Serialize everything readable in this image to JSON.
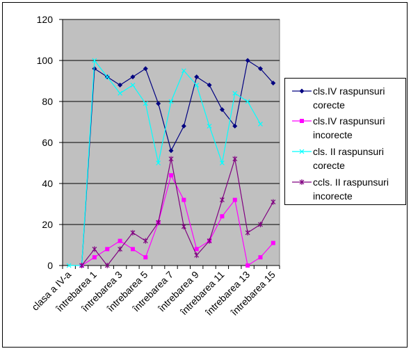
{
  "chart_data": {
    "type": "line",
    "categories": [
      "clasa a IV-a",
      "",
      "întrebarea 1",
      "",
      "întrebarea 3",
      "",
      "întrebarea 5",
      "",
      "întrebarea 7",
      "",
      "întrebarea 9",
      "",
      "întrebarea 11",
      "",
      "întrebarea 13",
      "",
      "întrebarea 15"
    ],
    "x_tick_labels": [
      "clasa a IV-a",
      "întrebarea 1",
      "întrebarea 3",
      "întrebarea 5",
      "întrebarea 7",
      "întrebarea 9",
      "întrebarea 11",
      "întrebarea 13",
      "întrebarea 15"
    ],
    "y_ticks": [
      "0",
      "20",
      "40",
      "60",
      "80",
      "100",
      "120"
    ],
    "ylim": [
      0,
      120
    ],
    "grid": "horizontal",
    "legend_position": "right",
    "background": "#c0c0c0",
    "series": [
      {
        "name": "cls.IV raspunsuri corecte",
        "color": "#000080",
        "marker": "diamond",
        "values": [
          null,
          0,
          96,
          92,
          88,
          92,
          96,
          79,
          56,
          68,
          92,
          88,
          76,
          68,
          100,
          96,
          89
        ]
      },
      {
        "name": "cls.IV raspunsuri incorecte",
        "color": "#ff00ff",
        "marker": "square",
        "values": [
          null,
          0,
          4,
          8,
          12,
          8,
          4,
          21,
          44,
          32,
          8,
          12,
          24,
          32,
          0,
          4,
          11
        ]
      },
      {
        "name": "cls. II raspunsuri corecte",
        "color": "#00ffff",
        "marker": "triangle",
        "values": [
          0,
          0,
          100,
          92,
          84,
          88,
          79,
          50,
          80,
          95,
          88,
          68,
          50,
          84,
          80,
          69,
          null
        ]
      },
      {
        "name": "ccls. II raspunsuri incorecte",
        "color": "#800080",
        "marker": "star",
        "values": [
          null,
          0,
          8,
          0,
          8,
          16,
          12,
          21,
          52,
          19,
          5,
          12,
          32,
          52,
          16,
          20,
          31
        ]
      }
    ],
    "legend": [
      {
        "lines": [
          "cls.IV raspunsuri",
          "corecte"
        ]
      },
      {
        "lines": [
          "cls.IV raspunsuri",
          "incorecte"
        ]
      },
      {
        "lines": [
          "cls. II raspunsuri",
          "corecte"
        ]
      },
      {
        "lines": [
          "ccls. II raspunsuri",
          "incorecte"
        ]
      }
    ]
  }
}
